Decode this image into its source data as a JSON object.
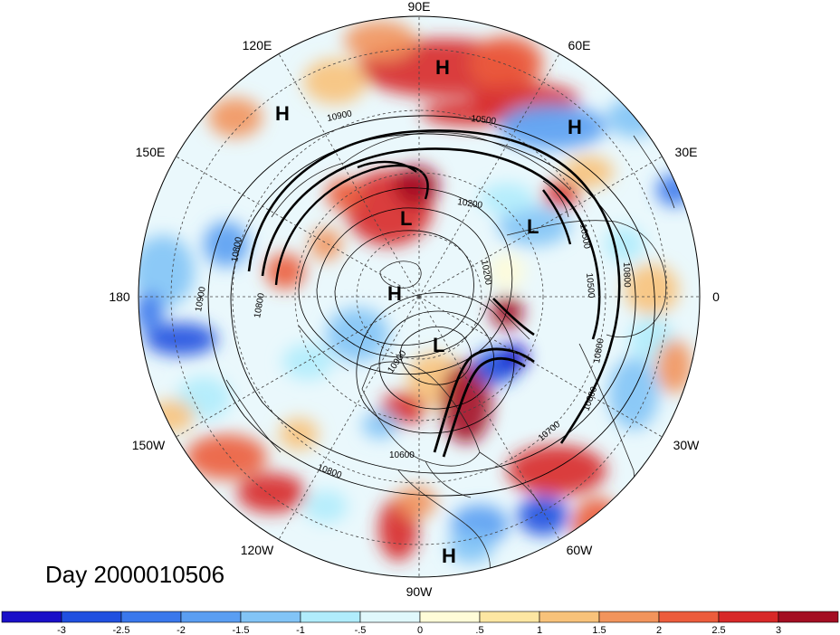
{
  "title": "Day 2000010506",
  "longitude_labels": [
    "90E",
    "60E",
    "30E",
    "0",
    "30W",
    "60W",
    "90W",
    "120W",
    "150W",
    "180",
    "150E",
    "120E"
  ],
  "pressure_centers": [
    {
      "type": "H"
    },
    {
      "type": "H"
    },
    {
      "type": "H"
    },
    {
      "type": "L"
    },
    {
      "type": "L"
    },
    {
      "type": "H"
    },
    {
      "type": "L"
    },
    {
      "type": "H"
    }
  ],
  "contour_labels": [
    "10900",
    "10500",
    "10200",
    "10800",
    "10900",
    "10800",
    "10500",
    "10800",
    "10500",
    "10700",
    "10800",
    "10800",
    "10600",
    "10800",
    "10900",
    "10200"
  ],
  "colorbar": {
    "colors": [
      "#1a10c8",
      "#2050e0",
      "#3a78ec",
      "#5a9ef2",
      "#82c4f6",
      "#b0ecfc",
      "#e0f8fc",
      "#fffcd8",
      "#fde6a2",
      "#f8c27a",
      "#f2945c",
      "#ec5c3c",
      "#d82828",
      "#a40e22"
    ],
    "tick_labels": [
      "-3",
      "-2.5",
      "-2",
      "-1.5",
      "-1",
      "-.5",
      "0",
      ".5",
      "1",
      "1.5",
      "2",
      "2.5",
      "3"
    ]
  }
}
